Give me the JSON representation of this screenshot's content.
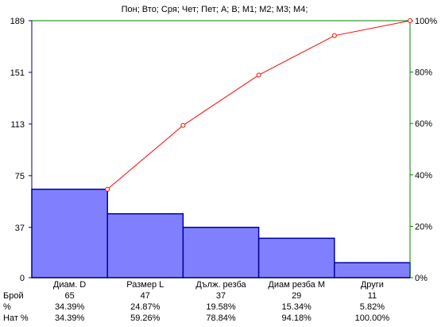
{
  "chart_data": {
    "type": "pareto",
    "title": "Пон; Вто; Сря; Чет; Пет; A; B; M1; M2; M3; M4;",
    "categories": [
      "Диам. D",
      "Размер L",
      "Дълж. резба",
      "Диам резба M",
      "Други"
    ],
    "counts": [
      65,
      47,
      37,
      29,
      11
    ],
    "percent": [
      34.39,
      24.87,
      19.58,
      15.34,
      5.82
    ],
    "cumulative_percent": [
      34.39,
      59.26,
      78.84,
      94.18,
      100.0
    ],
    "left_axis": {
      "range": [
        0,
        189
      ],
      "ticks": [
        "0",
        "37",
        "75",
        "113",
        "151",
        "189"
      ]
    },
    "right_axis": {
      "range": [
        0,
        100
      ],
      "ticks": [
        "0%",
        "20%",
        "40%",
        "60%",
        "80%",
        "100%"
      ]
    },
    "table": {
      "row_labels": [
        "Брой",
        "%",
        "Нат %"
      ],
      "rows": [
        [
          "65",
          "47",
          "37",
          "29",
          "11"
        ],
        [
          "34.39%",
          "24.87%",
          "19.58%",
          "15.34%",
          "5.82%"
        ],
        [
          "34.39%",
          "59.26%",
          "78.84%",
          "94.18%",
          "100.00%"
        ]
      ]
    },
    "colors": {
      "bar_fill": "#8080ff",
      "bar_stroke": "#0000a0",
      "line": "#ff0000",
      "left_axis": "#000080",
      "right_axis": "#008000",
      "plot_border": "#008000"
    }
  }
}
